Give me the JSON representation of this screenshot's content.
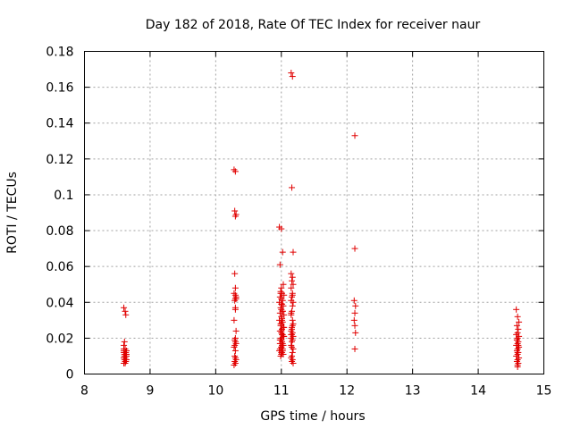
{
  "chart_data": {
    "type": "scatter",
    "title": "Day 182 of 2018, Rate Of TEC Index for receiver naur",
    "xlabel": "GPS time / hours",
    "ylabel": "ROTI / TECUs",
    "xlim": [
      8,
      15
    ],
    "ylim": [
      0,
      0.18
    ],
    "xticks": [
      "8",
      "9",
      "10",
      "11",
      "12",
      "13",
      "14",
      "15"
    ],
    "yticks": [
      "0",
      "0.02",
      "0.04",
      "0.06",
      "0.08",
      "0.1",
      "0.12",
      "0.14",
      "0.16",
      "0.18"
    ],
    "grid": true,
    "marker": "plus",
    "color": "#e00000",
    "series": [
      {
        "x": [
          8.6,
          8.62,
          8.63,
          8.61,
          8.6,
          8.62,
          8.64,
          8.6,
          8.61,
          8.63,
          8.62,
          8.6,
          8.64,
          8.61,
          8.63,
          8.62,
          8.6,
          8.61,
          8.63,
          8.62,
          8.64,
          8.6,
          8.62,
          8.61,
          8.63,
          8.62,
          8.6,
          8.64,
          10.28,
          10.3,
          10.29,
          10.31,
          10.3,
          10.29,
          10.3,
          10.28,
          10.31,
          10.3,
          10.29,
          10.3,
          10.28,
          10.31,
          10.3,
          10.29,
          10.3,
          10.31,
          10.28,
          10.3,
          10.29,
          10.3,
          10.31,
          10.29,
          10.3,
          10.28,
          10.3,
          10.31,
          10.29,
          10.3,
          10.97,
          11.0,
          11.02,
          10.98,
          11.03,
          11.0,
          10.99,
          11.01,
          11.04,
          10.98,
          11.0,
          11.02,
          10.97,
          11.01,
          11.03,
          10.99,
          11.0,
          11.02,
          10.98,
          11.04,
          11.0,
          11.01,
          10.97,
          11.02,
          11.0,
          10.99,
          11.03,
          11.01,
          10.98,
          11.0,
          11.02,
          11.04,
          10.99,
          11.0,
          11.01,
          10.98,
          11.03,
          11.0,
          11.02,
          10.97,
          11.01,
          11.0,
          10.99,
          11.03,
          11.0,
          11.02,
          10.98,
          11.01,
          11.0,
          11.04,
          10.99,
          11.02,
          11.0,
          11.01,
          10.98,
          11.03,
          11.0,
          11.02,
          10.99,
          11.01,
          11.15,
          11.17,
          11.16,
          11.18,
          11.15,
          11.17,
          11.16,
          11.18,
          11.15,
          11.17,
          11.16,
          11.15,
          11.18,
          11.17,
          11.16,
          11.15,
          11.17,
          11.18,
          11.16,
          11.15,
          11.17,
          11.16,
          11.18,
          11.15,
          11.17,
          11.16,
          11.15,
          11.18,
          11.17,
          11.16,
          11.15,
          11.17,
          11.16,
          11.18,
          11.15,
          11.17,
          11.16,
          11.15,
          11.17,
          11.16,
          12.12,
          12.12,
          12.11,
          12.13,
          12.12,
          12.11,
          12.12,
          12.13,
          12.12,
          14.58,
          14.6,
          14.62,
          14.59,
          14.61,
          14.6,
          14.58,
          14.62,
          14.6,
          14.59,
          14.61,
          14.6,
          14.58,
          14.62,
          14.6,
          14.59,
          14.61,
          14.6,
          14.58,
          14.62,
          14.6,
          14.59,
          14.61,
          14.6,
          14.6,
          14.59,
          14.61,
          14.6
        ],
        "y": [
          0.037,
          0.035,
          0.033,
          0.018,
          0.016,
          0.014,
          0.013,
          0.012,
          0.011,
          0.012,
          0.01,
          0.009,
          0.011,
          0.008,
          0.007,
          0.009,
          0.006,
          0.01,
          0.008,
          0.012,
          0.01,
          0.013,
          0.007,
          0.009,
          0.011,
          0.006,
          0.014,
          0.008,
          0.114,
          0.113,
          0.091,
          0.089,
          0.088,
          0.056,
          0.048,
          0.045,
          0.043,
          0.042,
          0.041,
          0.037,
          0.03,
          0.024,
          0.02,
          0.019,
          0.018,
          0.017,
          0.015,
          0.013,
          0.01,
          0.009,
          0.008,
          0.007,
          0.006,
          0.005,
          0.044,
          0.042,
          0.016,
          0.036,
          0.082,
          0.081,
          0.068,
          0.061,
          0.05,
          0.048,
          0.046,
          0.045,
          0.044,
          0.043,
          0.042,
          0.041,
          0.04,
          0.039,
          0.038,
          0.037,
          0.036,
          0.035,
          0.034,
          0.033,
          0.032,
          0.031,
          0.03,
          0.029,
          0.028,
          0.027,
          0.026,
          0.025,
          0.024,
          0.023,
          0.022,
          0.021,
          0.02,
          0.019,
          0.018,
          0.017,
          0.016,
          0.015,
          0.014,
          0.013,
          0.012,
          0.011,
          0.01,
          0.011,
          0.012,
          0.013,
          0.014,
          0.022,
          0.024,
          0.026,
          0.028,
          0.035,
          0.039,
          0.016,
          0.019,
          0.021,
          0.015,
          0.017,
          0.045,
          0.03,
          0.168,
          0.166,
          0.104,
          0.068,
          0.056,
          0.054,
          0.052,
          0.05,
          0.048,
          0.045,
          0.043,
          0.041,
          0.04,
          0.038,
          0.035,
          0.033,
          0.03,
          0.028,
          0.026,
          0.024,
          0.023,
          0.022,
          0.021,
          0.02,
          0.019,
          0.018,
          0.016,
          0.014,
          0.012,
          0.01,
          0.009,
          0.008,
          0.007,
          0.006,
          0.034,
          0.044,
          0.025,
          0.022,
          0.027,
          0.015,
          0.133,
          0.07,
          0.041,
          0.038,
          0.034,
          0.03,
          0.027,
          0.023,
          0.014,
          0.036,
          0.032,
          0.029,
          0.027,
          0.025,
          0.023,
          0.022,
          0.021,
          0.02,
          0.019,
          0.018,
          0.017,
          0.016,
          0.015,
          0.014,
          0.013,
          0.012,
          0.011,
          0.01,
          0.009,
          0.008,
          0.007,
          0.006,
          0.005,
          0.004,
          0.019,
          0.016,
          0.012
        ]
      }
    ]
  }
}
